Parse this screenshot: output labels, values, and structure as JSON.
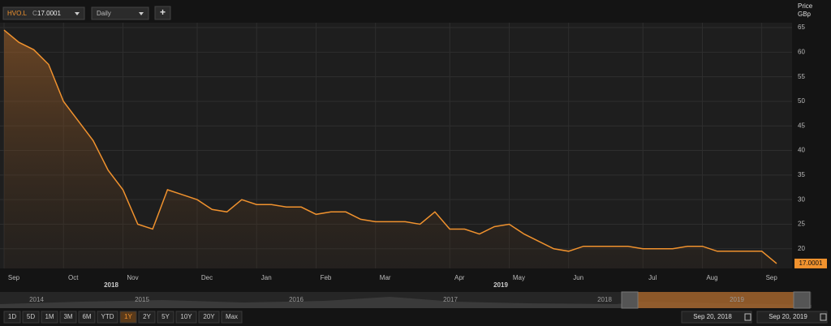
{
  "toolbar": {
    "symbol": "HVO.L",
    "close_prefix": "C",
    "interval": "Daily",
    "add": "+"
  },
  "chart_data": {
    "type": "line",
    "axis_title": "Price",
    "axis_unit": "GBp",
    "categories": [
      "Sep",
      null,
      null,
      null,
      "Oct",
      null,
      null,
      null,
      "Nov",
      null,
      null,
      null,
      null,
      "Dec",
      null,
      null,
      null,
      "Jan",
      null,
      null,
      null,
      "Feb",
      null,
      null,
      null,
      "Mar",
      null,
      null,
      null,
      null,
      "Apr",
      null,
      null,
      null,
      "May",
      null,
      null,
      null,
      "Jun",
      null,
      null,
      null,
      null,
      "Jul",
      null,
      null,
      null,
      "Aug",
      null,
      null,
      null,
      "Sep",
      null
    ],
    "year_labels": [
      "2018",
      "2019"
    ],
    "series": [
      {
        "name": "HVO.L",
        "color": "#f0922e",
        "values": [
          64.5,
          62,
          60.5,
          57.5,
          50,
          46,
          42,
          36,
          32,
          25,
          24,
          32,
          31,
          30,
          28,
          27.5,
          30,
          29,
          29,
          28.5,
          28.5,
          27,
          27.5,
          27.5,
          26,
          25.5,
          25.5,
          25.5,
          25,
          27.5,
          24,
          24,
          23,
          24.5,
          25,
          23,
          21.5,
          20,
          19.5,
          20.5,
          20.5,
          20.5,
          20.5,
          20,
          20,
          20,
          20.5,
          20.5,
          19.5,
          19.5,
          19.5,
          19.5,
          17.0001
        ]
      }
    ],
    "ylim": [
      16,
      66
    ],
    "yticks": [
      20,
      25,
      30,
      35,
      40,
      45,
      50,
      55,
      60,
      65
    ],
    "grid": true
  },
  "navigator": {
    "years": [
      "2014",
      "2015",
      "2016",
      "2017",
      "2018",
      "2019"
    ],
    "ranges": [
      "1D",
      "5D",
      "1M",
      "3M",
      "6M",
      "YTD",
      "1Y",
      "2Y",
      "5Y",
      "10Y",
      "20Y",
      "Max"
    ],
    "active_range": "1Y",
    "start_date": "Sep 20, 2018",
    "end_date": "Sep 20, 2019"
  }
}
